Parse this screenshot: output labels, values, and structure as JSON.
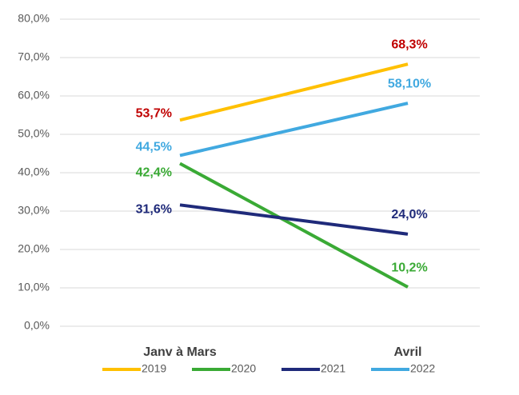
{
  "chart_data": {
    "type": "line",
    "categories": [
      "Janv à Mars",
      "Avril"
    ],
    "series": [
      {
        "name": "2019",
        "color": "#ffc000",
        "label_color": "#c00000",
        "values": [
          53.7,
          68.3
        ],
        "value_labels": [
          "53,7%",
          "68,3%"
        ]
      },
      {
        "name": "2020",
        "color": "#3aaa35",
        "label_color": "#3aaa35",
        "values": [
          42.4,
          10.2
        ],
        "value_labels": [
          "42,4%",
          "10,2%"
        ]
      },
      {
        "name": "2021",
        "color": "#1f2a7a",
        "label_color": "#1f2a7a",
        "values": [
          31.6,
          24.0
        ],
        "value_labels": [
          "31,6%",
          "24,0%"
        ]
      },
      {
        "name": "2022",
        "color": "#41a9e0",
        "label_color": "#41a9e0",
        "values": [
          44.5,
          58.1
        ],
        "value_labels": [
          "44,5%",
          "58,10%"
        ]
      }
    ],
    "ylim": [
      0,
      80
    ],
    "yticks": [
      {
        "value": 0,
        "label": "0,0%"
      },
      {
        "value": 10,
        "label": "10,0%"
      },
      {
        "value": 20,
        "label": "20,0%"
      },
      {
        "value": 30,
        "label": "30,0%"
      },
      {
        "value": 40,
        "label": "40,0%"
      },
      {
        "value": 50,
        "label": "50,0%"
      },
      {
        "value": 60,
        "label": "60,0%"
      },
      {
        "value": 70,
        "label": "70,0%"
      },
      {
        "value": 80,
        "label": "80,0%"
      }
    ],
    "grid": true,
    "legend": "bottom"
  }
}
